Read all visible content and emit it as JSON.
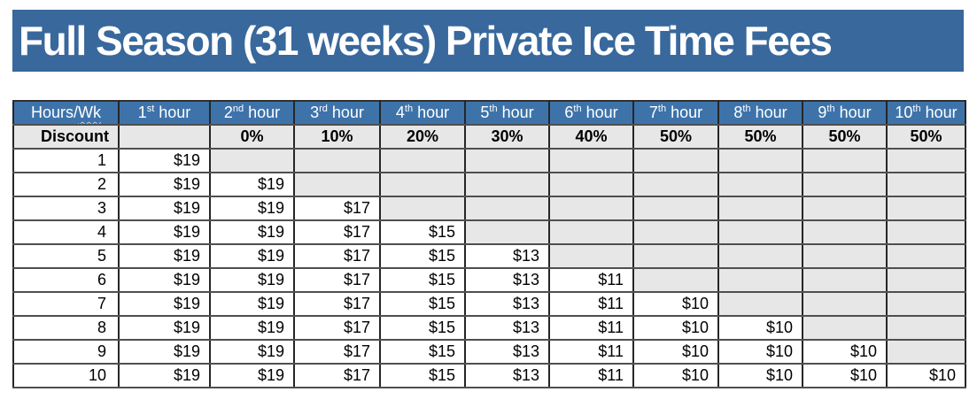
{
  "title": "Full Season (31 weeks) Private Ice Time Fees",
  "colors": {
    "banner_bg": "#38689C",
    "header_bg": "#3E73AA",
    "header_text": "#FFFFFF",
    "shaded_cell": "#E8E7E7",
    "body_text": "#000000"
  },
  "table": {
    "corner_prefix": "Hours/",
    "corner_wavy": "Wk",
    "hour_columns": [
      {
        "n": "1",
        "o": "st",
        "w": " hour"
      },
      {
        "n": "2",
        "o": "nd",
        "w": " hour"
      },
      {
        "n": "3",
        "o": "rd",
        "w": " hour"
      },
      {
        "n": "4",
        "o": "th",
        "w": " hour"
      },
      {
        "n": "5",
        "o": "th",
        "w": " hour"
      },
      {
        "n": "6",
        "o": "th",
        "w": " hour"
      },
      {
        "n": "7",
        "o": "th",
        "w": " hour"
      },
      {
        "n": "8",
        "o": "th",
        "w": " hour"
      },
      {
        "n": "9",
        "o": "th",
        "w": " hour"
      },
      {
        "n": "10",
        "o": "th",
        "w": " hour"
      }
    ],
    "discount_label": "Discount",
    "discount_values": [
      "",
      "0%",
      "10%",
      "20%",
      "30%",
      "40%",
      "50%",
      "50%",
      "50%",
      "50%"
    ],
    "rows": [
      {
        "hours": "1",
        "values": [
          "$19",
          "",
          "",
          "",
          "",
          "",
          "",
          "",
          "",
          ""
        ]
      },
      {
        "hours": "2",
        "values": [
          "$19",
          "$19",
          "",
          "",
          "",
          "",
          "",
          "",
          "",
          ""
        ]
      },
      {
        "hours": "3",
        "values": [
          "$19",
          "$19",
          "$17",
          "",
          "",
          "",
          "",
          "",
          "",
          ""
        ]
      },
      {
        "hours": "4",
        "values": [
          "$19",
          "$19",
          "$17",
          "$15",
          "",
          "",
          "",
          "",
          "",
          ""
        ]
      },
      {
        "hours": "5",
        "values": [
          "$19",
          "$19",
          "$17",
          "$15",
          "$13",
          "",
          "",
          "",
          "",
          ""
        ]
      },
      {
        "hours": "6",
        "values": [
          "$19",
          "$19",
          "$17",
          "$15",
          "$13",
          "$11",
          "",
          "",
          "",
          ""
        ]
      },
      {
        "hours": "7",
        "values": [
          "$19",
          "$19",
          "$17",
          "$15",
          "$13",
          "$11",
          "$10",
          "",
          "",
          ""
        ]
      },
      {
        "hours": "8",
        "values": [
          "$19",
          "$19",
          "$17",
          "$15",
          "$13",
          "$11",
          "$10",
          "$10",
          "",
          ""
        ]
      },
      {
        "hours": "9",
        "values": [
          "$19",
          "$19",
          "$17",
          "$15",
          "$13",
          "$11",
          "$10",
          "$10",
          "$10",
          ""
        ]
      },
      {
        "hours": "10",
        "values": [
          "$19",
          "$19",
          "$17",
          "$15",
          "$13",
          "$11",
          "$10",
          "$10",
          "$10",
          "$10"
        ]
      }
    ]
  }
}
